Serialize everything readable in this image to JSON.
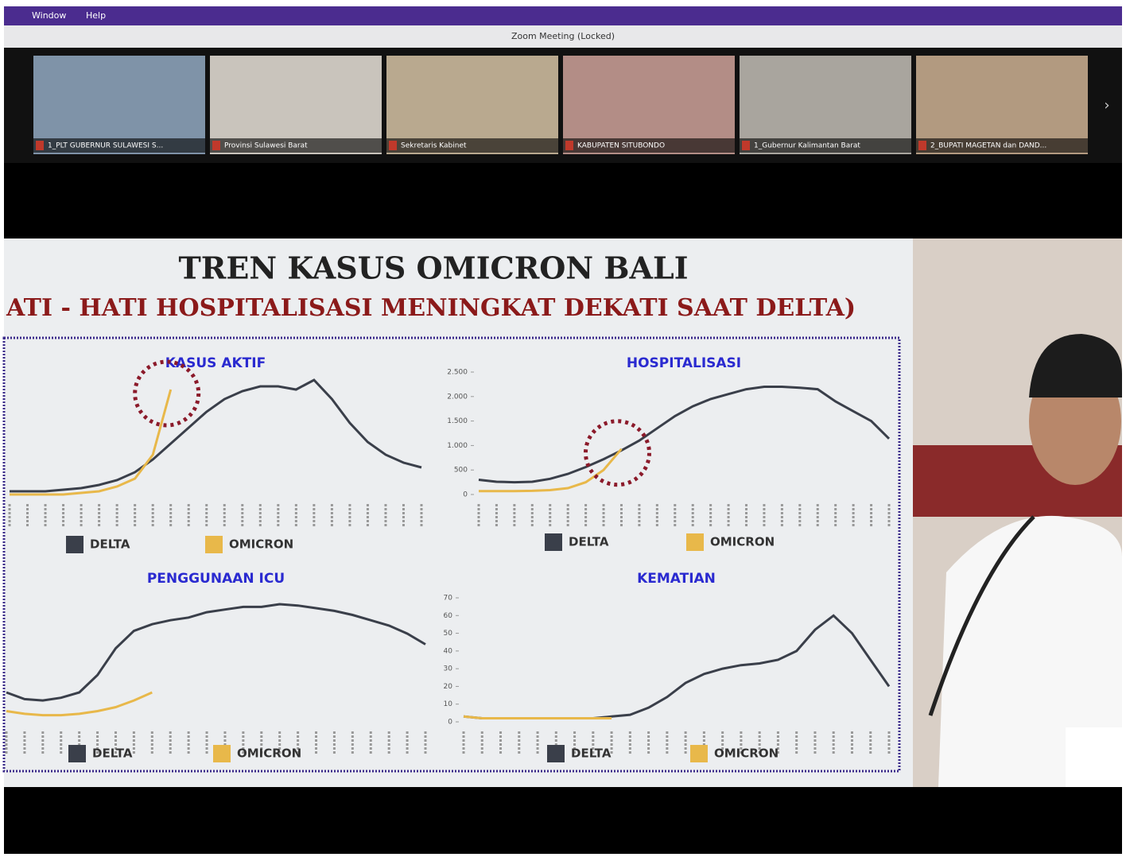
{
  "menu": [
    "Window",
    "Help"
  ],
  "window_title": "Zoom Meeting (Locked)",
  "participants": [
    {
      "name": "1_PLT GUBERNUR SULAWESI S..."
    },
    {
      "name": "Provinsi Sulawesi Barat"
    },
    {
      "name": "Sekretaris Kabinet"
    },
    {
      "name": "KABUPATEN SITUBONDO"
    },
    {
      "name": "1_Gubernur Kalimantan Barat"
    },
    {
      "name": "2_BUPATI MAGETAN dan DAND..."
    }
  ],
  "slide": {
    "title": "TREN KASUS OMICRON BALI",
    "subtitle": "ATI - HATI HOSPITALISASI MENINGKAT DEKATI SAAT DELTA)",
    "charts": [
      {
        "type": "line",
        "title": "KASUS AKTIF",
        "series": [
          {
            "name": "DELTA",
            "color": "#3a3f4a",
            "values": [
              2,
              2,
              2,
              3,
              4,
              6,
              9,
              14,
              22,
              32,
              42,
              52,
              60,
              65,
              68,
              68,
              66,
              72,
              60,
              45,
              33,
              25,
              20,
              17
            ]
          },
          {
            "name": "OMICRON",
            "color": "#e8b84a",
            "values": [
              0,
              0,
              0,
              0,
              1,
              2,
              5,
              10,
              25,
              66,
              null,
              null,
              null,
              null,
              null,
              null,
              null,
              null,
              null,
              null,
              null,
              null,
              null,
              null
            ]
          }
        ]
      },
      {
        "type": "line",
        "title": "HOSPITALISASI",
        "ylim": [
          0,
          2500
        ],
        "yticks": [
          0,
          500,
          {
            "value": 1000,
            "label": "1.000"
          },
          {
            "value": 1500,
            "label": "1.500"
          },
          {
            "value": 2000,
            "label": "2.000"
          },
          {
            "value": 2500,
            "label": "2.500"
          }
        ],
        "series": [
          {
            "name": "DELTA",
            "color": "#3a3f4a",
            "values": [
              300,
              260,
              250,
              260,
              320,
              420,
              560,
              720,
              900,
              1100,
              1350,
              1600,
              1800,
              1950,
              2050,
              2150,
              2200,
              2200,
              2180,
              2150,
              1900,
              1700,
              1500,
              1140
            ]
          },
          {
            "name": "OMICRON",
            "color": "#e8b84a",
            "values": [
              70,
              70,
              70,
              75,
              90,
              130,
              250,
              500,
              930,
              null,
              null,
              null,
              null,
              null,
              null,
              null,
              null,
              null,
              null,
              null,
              null,
              null,
              null,
              null
            ]
          }
        ]
      },
      {
        "type": "line",
        "title": "PENGGUNAAN ICU",
        "series": [
          {
            "name": "DELTA",
            "color": "#3a3f4a",
            "values": [
              22,
              17,
              16,
              18,
              22,
              35,
              55,
              68,
              73,
              76,
              78,
              82,
              84,
              86,
              86,
              88,
              87,
              85,
              83,
              80,
              76,
              72,
              66,
              58
            ]
          },
          {
            "name": "OMICRON",
            "color": "#e8b84a",
            "values": [
              8,
              6,
              5,
              5,
              6,
              8,
              11,
              16,
              22,
              null,
              null,
              null,
              null,
              null,
              null,
              null,
              null,
              null,
              null,
              null,
              null,
              null,
              null,
              null
            ]
          }
        ]
      },
      {
        "type": "line",
        "title": "KEMATIAN",
        "ylim": [
          0,
          70
        ],
        "yticks": [
          0,
          10,
          20,
          30,
          40,
          50,
          60,
          70
        ],
        "series": [
          {
            "name": "DELTA",
            "color": "#3a3f4a",
            "values": [
              3,
              2,
              2,
              2,
              2,
              2,
              2,
              2,
              3,
              4,
              8,
              14,
              22,
              27,
              30,
              32,
              33,
              35,
              40,
              52,
              60,
              50,
              35,
              20
            ]
          },
          {
            "name": "OMICRON",
            "color": "#e8b84a",
            "values": [
              3,
              2,
              2,
              2,
              2,
              2,
              2,
              2,
              2,
              null,
              null,
              null,
              null,
              null,
              null,
              null,
              null,
              null,
              null,
              null,
              null,
              null,
              null,
              null
            ]
          }
        ]
      }
    ]
  }
}
